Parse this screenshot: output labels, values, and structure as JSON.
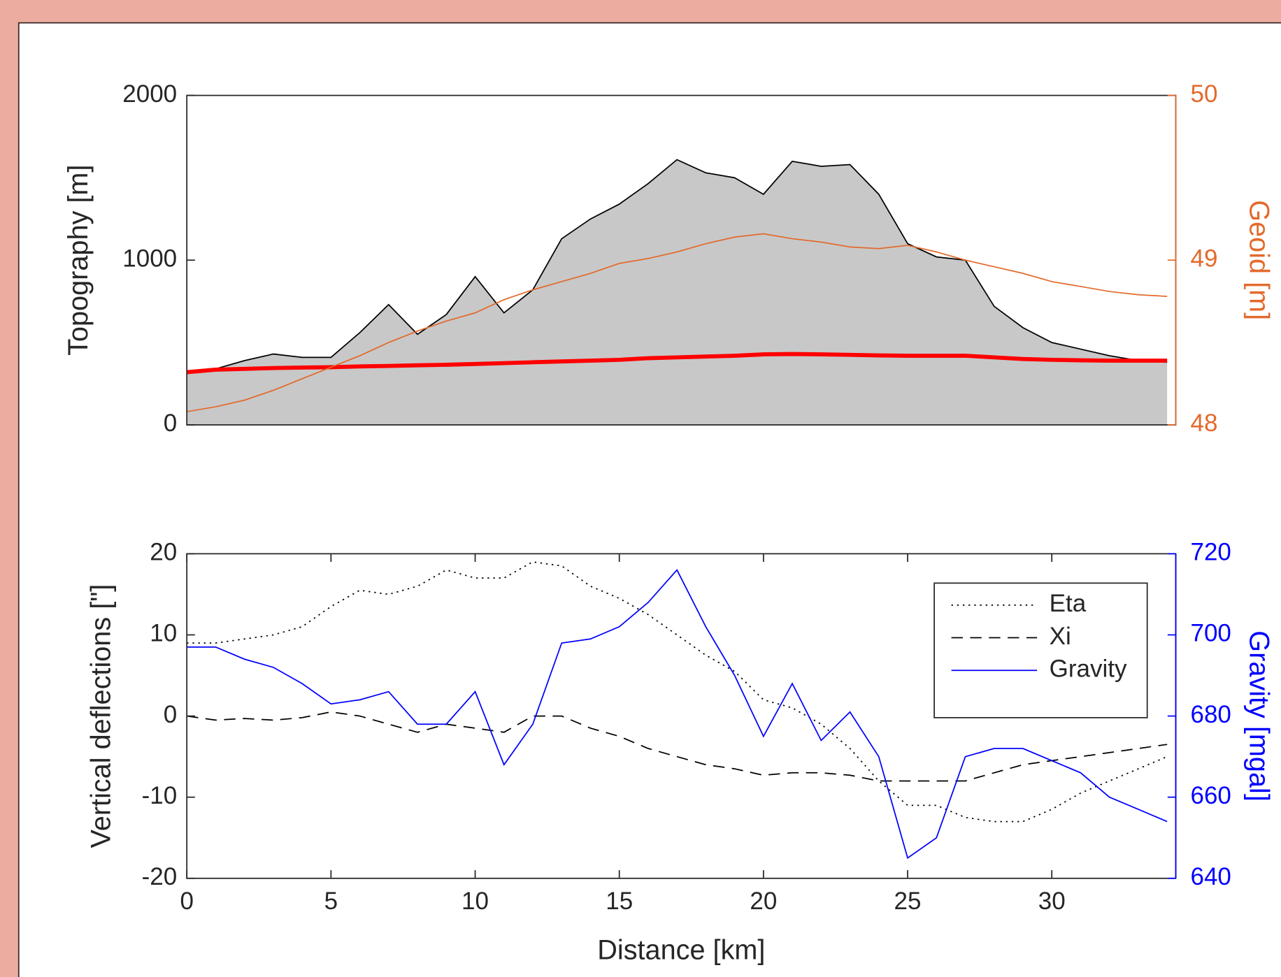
{
  "chart_data": [
    {
      "type": "area",
      "ylabel": "Topography [m]",
      "y2label": "Geoid [m]",
      "xlim": [
        0,
        34.3
      ],
      "ylim": [
        0,
        2000
      ],
      "yticks": [
        0,
        1000,
        2000
      ],
      "y2lim": [
        48,
        50
      ],
      "y2ticks": [
        48,
        49,
        50
      ],
      "y2color": "#e36a2c",
      "x": [
        0,
        1,
        2,
        3,
        4,
        5,
        6,
        7,
        8,
        9,
        10,
        11,
        12,
        13,
        14,
        15,
        16,
        17,
        18,
        19,
        20,
        21,
        22,
        23,
        24,
        25,
        26,
        27,
        28,
        29,
        30,
        31,
        32,
        33,
        34
      ],
      "series": [
        {
          "color": "#000000",
          "fill": "#c8c8c8",
          "linestyle": "solid",
          "linewidth": 1.5,
          "values": [
            320,
            340,
            390,
            430,
            410,
            410,
            560,
            730,
            550,
            670,
            900,
            680,
            820,
            1130,
            1250,
            1340,
            1465,
            1610,
            1530,
            1500,
            1400,
            1600,
            1570,
            1580,
            1400,
            1100,
            1020,
            1000,
            720,
            590,
            500,
            460,
            420,
            390,
            380
          ]
        },
        {
          "color": "#ff0000",
          "linestyle": "solid",
          "linewidth": 5,
          "values": [
            320,
            335,
            340,
            345,
            348,
            350,
            355,
            358,
            362,
            365,
            370,
            375,
            380,
            385,
            390,
            395,
            405,
            410,
            415,
            420,
            428,
            430,
            428,
            425,
            422,
            420,
            420,
            420,
            410,
            400,
            395,
            392,
            390,
            390,
            390
          ]
        },
        {
          "color": "#e36a2c",
          "axis": "y2",
          "linestyle": "solid",
          "linewidth": 1.5,
          "values": [
            48.08,
            48.11,
            48.15,
            48.21,
            48.28,
            48.35,
            48.42,
            48.5,
            48.57,
            48.63,
            48.68,
            48.76,
            48.82,
            48.87,
            48.92,
            48.98,
            49.01,
            49.05,
            49.1,
            49.14,
            49.16,
            49.13,
            49.11,
            49.08,
            49.07,
            49.09,
            49.05,
            49.0,
            48.96,
            48.92,
            48.87,
            48.84,
            48.81,
            48.79,
            48.78
          ]
        }
      ]
    },
    {
      "type": "line",
      "xlabel": "Distance [km]",
      "ylabel": "Vertical deflections [\"]",
      "y2label": "Gravity [mgal]",
      "xlim": [
        0,
        34.3
      ],
      "xticks": [
        0,
        5,
        10,
        15,
        20,
        25,
        30
      ],
      "ylim": [
        -20,
        20
      ],
      "yticks": [
        -20,
        -10,
        0,
        10,
        20
      ],
      "y2lim": [
        640,
        720
      ],
      "y2ticks": [
        640,
        660,
        680,
        700,
        720
      ],
      "y2color": "#0000ff",
      "legend": "northeast",
      "x": [
        0,
        1,
        2,
        3,
        4,
        5,
        6,
        7,
        8,
        9,
        10,
        11,
        12,
        13,
        14,
        15,
        16,
        17,
        18,
        19,
        20,
        21,
        22,
        23,
        24,
        25,
        26,
        27,
        28,
        29,
        30,
        31,
        32,
        33,
        34
      ],
      "series": [
        {
          "name": "Eta",
          "color": "#000000",
          "linestyle": "dotted",
          "linewidth": 1.5,
          "values": [
            9,
            9,
            9.5,
            10,
            11,
            13.5,
            15.5,
            15,
            16,
            18,
            17,
            17,
            19,
            18.5,
            16,
            14.5,
            12.5,
            10,
            7.5,
            5.5,
            2,
            1,
            -1,
            -4,
            -8,
            -11,
            -11,
            -12.5,
            -13,
            -13,
            -11.5,
            -9.5,
            -8,
            -6.5,
            -5
          ]
        },
        {
          "name": "Xi",
          "color": "#000000",
          "linestyle": "dashed",
          "linewidth": 1.5,
          "values": [
            0,
            -0.5,
            -0.3,
            -0.5,
            -0.2,
            0.5,
            0,
            -1,
            -2,
            -1,
            -1.5,
            -2,
            0,
            0,
            -1.5,
            -2.5,
            -4,
            -5,
            -6,
            -6.5,
            -7.3,
            -7,
            -7,
            -7.3,
            -8,
            -8,
            -8,
            -8,
            -7,
            -6,
            -5.5,
            -5,
            -4.5,
            -4,
            -3.5
          ]
        },
        {
          "name": "Gravity",
          "color": "#0000ff",
          "axis": "y2",
          "linestyle": "solid",
          "linewidth": 1.5,
          "values": [
            697,
            697,
            694,
            692,
            688,
            683,
            684,
            686,
            678,
            678,
            686,
            668,
            678,
            698,
            699,
            702,
            708,
            716,
            702,
            690,
            675,
            688,
            674,
            681,
            670,
            645,
            650,
            670,
            672,
            672,
            669,
            666,
            660,
            657,
            654
          ]
        }
      ]
    }
  ]
}
